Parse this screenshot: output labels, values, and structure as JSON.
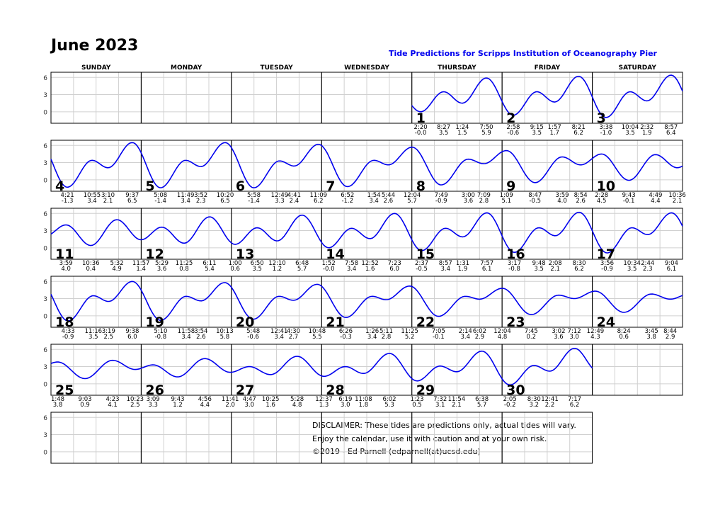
{
  "header": {
    "title": "June 2023",
    "subtitle": "Tide Predictions for Scripps Institution of Oceanography Pier"
  },
  "weekdays": [
    "SUNDAY",
    "MONDAY",
    "TUESDAY",
    "WEDNESDAY",
    "THURSDAY",
    "FRIDAY",
    "SATURDAY"
  ],
  "disclaimer": [
    "DISCLAIMER: These tides are predictions only, actual tides will vary.",
    "Enjoy the calendar, use it with caution and at your own risk.",
    "©2019 - Ed Parnell (edparnell(at)ucsd.edu)"
  ],
  "colors": {
    "curve": "#0000ee",
    "grid": "#d0d0d0",
    "frame": "#000000",
    "subtitle": "#0000ee"
  },
  "chart_data": {
    "type": "line",
    "title": "June 2023",
    "subtitle": "Tide Predictions for Scripps Institution of Oceanography Pier",
    "y_ticks": [
      "0",
      "3",
      "6"
    ],
    "ylim": [
      -2,
      6.9
    ],
    "grid": true,
    "first_weekday": "THURSDAY",
    "days": [
      {
        "day": 1,
        "extremes": [
          [
            "2:20",
            "-0.0"
          ],
          [
            "8:27",
            "3.5"
          ],
          [
            "1:24",
            "1.5"
          ],
          [
            "7:50",
            "5.9"
          ]
        ]
      },
      {
        "day": 2,
        "extremes": [
          [
            "2:58",
            "-0.6"
          ],
          [
            "9:15",
            "3.5"
          ],
          [
            "1:57",
            "1.7"
          ],
          [
            "8:21",
            "6.2"
          ]
        ]
      },
      {
        "day": 3,
        "extremes": [
          [
            "3:38",
            "-1.0"
          ],
          [
            "10:04",
            "3.5"
          ],
          [
            "2:32",
            "1.9"
          ],
          [
            "8:57",
            "6.4"
          ]
        ]
      },
      {
        "day": 4,
        "extremes": [
          [
            "4:21",
            "-1.3"
          ],
          [
            "10:55",
            "3.4"
          ],
          [
            "3:10",
            "2.1"
          ],
          [
            "9:37",
            "6.5"
          ]
        ]
      },
      {
        "day": 5,
        "extremes": [
          [
            "5:08",
            "-1.4"
          ],
          [
            "11:49",
            "3.4"
          ],
          [
            "3:52",
            "2.3"
          ],
          [
            "10:20",
            "6.5"
          ]
        ]
      },
      {
        "day": 6,
        "extremes": [
          [
            "5:58",
            "-1.4"
          ],
          [
            "12:49",
            "3.3"
          ],
          [
            "4:41",
            "2.4"
          ],
          [
            "11:09",
            "6.2"
          ]
        ]
      },
      {
        "day": 7,
        "extremes": [
          [
            "6:52",
            "-1.2"
          ],
          [
            "1:54",
            "3.4"
          ],
          [
            "5:44",
            "2.6"
          ]
        ]
      },
      {
        "day": 8,
        "extremes": [
          [
            "12:04",
            "5.7"
          ],
          [
            "7:49",
            "-0.9"
          ],
          [
            "3:00",
            "3.6"
          ],
          [
            "7:09",
            "2.8"
          ]
        ]
      },
      {
        "day": 9,
        "extremes": [
          [
            "1:09",
            "5.1"
          ],
          [
            "8:47",
            "-0.5"
          ],
          [
            "3:59",
            "4.0"
          ],
          [
            "8:54",
            "2.6"
          ]
        ]
      },
      {
        "day": 10,
        "extremes": [
          [
            "2:28",
            "4.5"
          ],
          [
            "9:43",
            "-0.1"
          ],
          [
            "4:49",
            "4.4"
          ],
          [
            "10:36",
            "2.1"
          ]
        ]
      },
      {
        "day": 11,
        "extremes": [
          [
            "3:59",
            "4.0"
          ],
          [
            "10:36",
            "0.4"
          ],
          [
            "5:32",
            "4.9"
          ],
          [
            "11:57",
            "1.4"
          ]
        ]
      },
      {
        "day": 12,
        "extremes": [
          [
            "5:29",
            "3.6"
          ],
          [
            "11:25",
            "0.8"
          ],
          [
            "6:11",
            "5.4"
          ]
        ]
      },
      {
        "day": 13,
        "extremes": [
          [
            "1:00",
            "0.6"
          ],
          [
            "6:50",
            "3.5"
          ],
          [
            "12:10",
            "1.2"
          ],
          [
            "6:48",
            "5.7"
          ]
        ]
      },
      {
        "day": 14,
        "extremes": [
          [
            "1:52",
            "-0.0"
          ],
          [
            "7:58",
            "3.4"
          ],
          [
            "12:52",
            "1.6"
          ],
          [
            "7:23",
            "6.0"
          ]
        ]
      },
      {
        "day": 15,
        "extremes": [
          [
            "2:37",
            "-0.5"
          ],
          [
            "8:57",
            "3.4"
          ],
          [
            "1:31",
            "1.9"
          ],
          [
            "7:57",
            "6.1"
          ]
        ]
      },
      {
        "day": 16,
        "extremes": [
          [
            "3:17",
            "-0.8"
          ],
          [
            "9:48",
            "3.5"
          ],
          [
            "2:08",
            "2.1"
          ],
          [
            "8:30",
            "6.2"
          ]
        ]
      },
      {
        "day": 17,
        "extremes": [
          [
            "3:56",
            "-0.9"
          ],
          [
            "10:34",
            "3.5"
          ],
          [
            "2:44",
            "2.3"
          ],
          [
            "9:04",
            "6.1"
          ]
        ]
      },
      {
        "day": 18,
        "extremes": [
          [
            "4:33",
            "-0.9"
          ],
          [
            "11:16",
            "3.5"
          ],
          [
            "3:19",
            "2.5"
          ],
          [
            "9:38",
            "6.0"
          ]
        ]
      },
      {
        "day": 19,
        "extremes": [
          [
            "5:10",
            "-0.8"
          ],
          [
            "11:58",
            "3.4"
          ],
          [
            "3:54",
            "2.6"
          ],
          [
            "10:13",
            "5.8"
          ]
        ]
      },
      {
        "day": 20,
        "extremes": [
          [
            "5:48",
            "-0.6"
          ],
          [
            "12:41",
            "3.4"
          ],
          [
            "4:30",
            "2.7"
          ],
          [
            "10:48",
            "5.5"
          ]
        ]
      },
      {
        "day": 21,
        "extremes": [
          [
            "6:26",
            "-0.3"
          ],
          [
            "1:26",
            "3.4"
          ],
          [
            "5:11",
            "2.8"
          ],
          [
            "11:25",
            "5.2"
          ]
        ]
      },
      {
        "day": 22,
        "extremes": [
          [
            "7:05",
            "-0.1"
          ],
          [
            "2:14",
            "3.4"
          ],
          [
            "6:02",
            "2.9"
          ]
        ]
      },
      {
        "day": 23,
        "extremes": [
          [
            "12:04",
            "4.8"
          ],
          [
            "7:45",
            "0.2"
          ],
          [
            "3:02",
            "3.6"
          ],
          [
            "7:12",
            "3.0"
          ]
        ]
      },
      {
        "day": 24,
        "extremes": [
          [
            "12:49",
            "4.3"
          ],
          [
            "8:24",
            "0.6"
          ],
          [
            "3:45",
            "3.8"
          ],
          [
            "8:44",
            "2.9"
          ]
        ]
      },
      {
        "day": 25,
        "extremes": [
          [
            "1:48",
            "3.8"
          ],
          [
            "9:03",
            "0.9"
          ],
          [
            "4:23",
            "4.1"
          ],
          [
            "10:23",
            "2.5"
          ]
        ]
      },
      {
        "day": 26,
        "extremes": [
          [
            "3:09",
            "3.3"
          ],
          [
            "9:43",
            "1.2"
          ],
          [
            "4:56",
            "4.4"
          ],
          [
            "11:41",
            "2.0"
          ]
        ]
      },
      {
        "day": 27,
        "extremes": [
          [
            "4:47",
            "3.0"
          ],
          [
            "10:25",
            "1.6"
          ],
          [
            "5:28",
            "4.8"
          ]
        ]
      },
      {
        "day": 28,
        "extremes": [
          [
            "12:37",
            "1.3"
          ],
          [
            "6:19",
            "3.0"
          ],
          [
            "11:08",
            "1.8"
          ],
          [
            "6:02",
            "5.3"
          ]
        ]
      },
      {
        "day": 29,
        "extremes": [
          [
            "1:23",
            "0.5"
          ],
          [
            "7:32",
            "3.1"
          ],
          [
            "11:54",
            "2.1"
          ],
          [
            "6:38",
            "5.7"
          ]
        ]
      },
      {
        "day": 30,
        "extremes": [
          [
            "2:05",
            "-0.2"
          ],
          [
            "8:30",
            "3.2"
          ],
          [
            "12:41",
            "2.2"
          ],
          [
            "7:17",
            "6.2"
          ]
        ]
      }
    ]
  }
}
